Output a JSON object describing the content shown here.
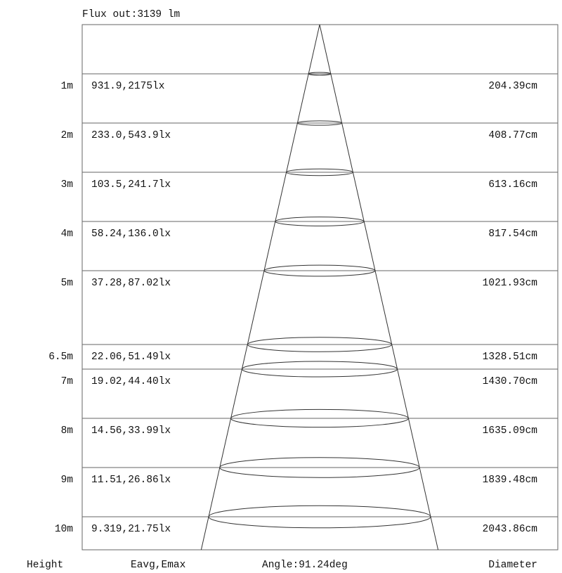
{
  "flux_label": "Flux out:3139 lm",
  "footer": {
    "height_label": "Height",
    "illuminance_label": "Eavg,Emax",
    "angle_label": "Angle:91.24deg",
    "diameter_label": "Diameter"
  },
  "beam_angle_deg": 91.24,
  "rows": [
    {
      "height": "1m",
      "height_m": 1,
      "illuminance": "931.9,2175lx",
      "diameter": "204.39cm"
    },
    {
      "height": "2m",
      "height_m": 2,
      "illuminance": "233.0,543.9lx",
      "diameter": "408.77cm"
    },
    {
      "height": "3m",
      "height_m": 3,
      "illuminance": "103.5,241.7lx",
      "diameter": "613.16cm"
    },
    {
      "height": "4m",
      "height_m": 4,
      "illuminance": "58.24,136.0lx",
      "diameter": "817.54cm"
    },
    {
      "height": "5m",
      "height_m": 5,
      "illuminance": "37.28,87.02lx",
      "diameter": "1021.93cm"
    },
    {
      "height": "6.5m",
      "height_m": 6.5,
      "illuminance": "22.06,51.49lx",
      "diameter": "1328.51cm"
    },
    {
      "height": "7m",
      "height_m": 7,
      "illuminance": "19.02,44.40lx",
      "diameter": "1430.70cm"
    },
    {
      "height": "8m",
      "height_m": 8,
      "illuminance": "14.56,33.99lx",
      "diameter": "1635.09cm"
    },
    {
      "height": "9m",
      "height_m": 9,
      "illuminance": "11.51,26.86lx",
      "diameter": "1839.48cm"
    },
    {
      "height": "10m",
      "height_m": 10,
      "illuminance": "9.319,21.75lx",
      "diameter": "2043.86cm"
    }
  ]
}
